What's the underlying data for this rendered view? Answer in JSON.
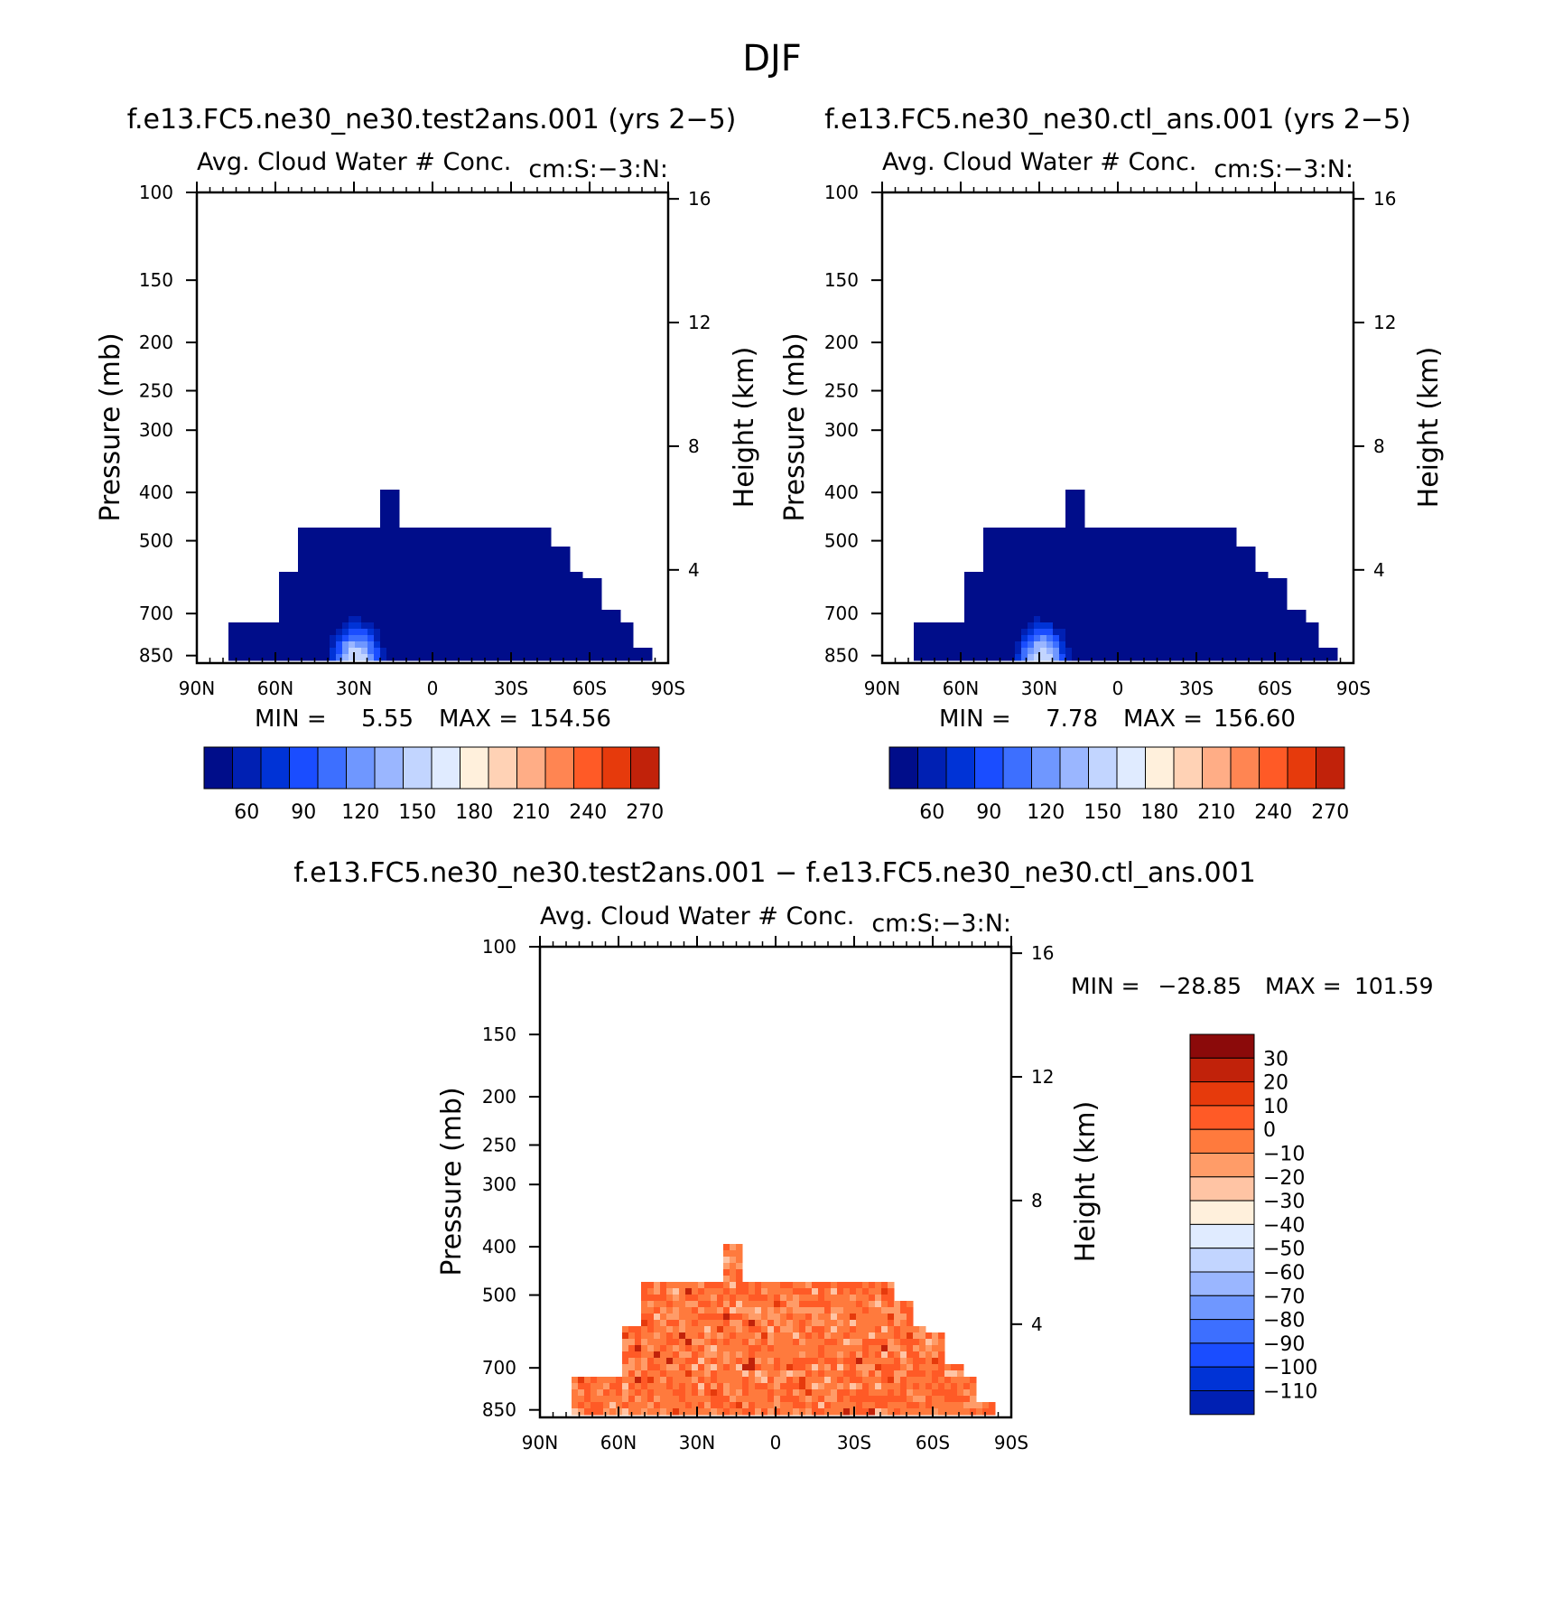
{
  "figure": {
    "title": "DJF",
    "diff_title": "f.e13.FC5.ne30_ne30.test2ans.001  −  f.e13.FC5.ne30_ne30.ctl_ans.001"
  },
  "colors": {
    "abs_scale": [
      "#000d8a",
      "#0020b3",
      "#0033d6",
      "#1a4dff",
      "#3d6fff",
      "#6f97ff",
      "#9ab6ff",
      "#c2d5ff",
      "#e0ebff",
      "#fff0dc",
      "#ffd2b5",
      "#ffad86",
      "#ff8552",
      "#ff5a26",
      "#e63a0c",
      "#c1220a",
      "#8b0a0a"
    ],
    "diff_scale": [
      "#8b0a0a",
      "#c1220a",
      "#e63a0c",
      "#ff5a26",
      "#ff7a3d",
      "#ff9c68",
      "#ffc4a4",
      "#fff0dc",
      "#e0ebff",
      "#c2d5ff",
      "#9ab6ff",
      "#6f97ff",
      "#3d6fff",
      "#1a4dff",
      "#0033d6",
      "#0020b3",
      "#000d8a"
    ]
  },
  "chart_data": [
    {
      "type": "heatmap",
      "panel": "test",
      "title": "f.e13.FC5.ne30_ne30.test2ans.001 (yrs 2−5)",
      "subtitle_left": "Avg. Cloud Water # Conc.",
      "subtitle_right": "cm:S:−3:N:",
      "ylabel": "Pressure (mb)",
      "ylabel_right": "Height (km)",
      "x_ticks": [
        "90N",
        "60N",
        "30N",
        "0",
        "30S",
        "60S",
        "90S"
      ],
      "y_ticks": [
        "100",
        "150",
        "200",
        "250",
        "300",
        "400",
        "500",
        "700",
        "850"
      ],
      "y_ticks_right": [
        "16",
        "12",
        "8",
        "4"
      ],
      "colorbar_labels": [
        "60",
        "90",
        "120",
        "150",
        "180",
        "210",
        "240",
        "270"
      ],
      "stats": {
        "min_label": "MIN =",
        "min": "5.55",
        "max_label": "MAX =",
        "max": "154.56"
      },
      "top_pressure": [
        860,
        860,
        720,
        720,
        720,
        570,
        470,
        470,
        470,
        470,
        470,
        400,
        470,
        470,
        470,
        470,
        470,
        470,
        470,
        470,
        470,
        520,
        570,
        600,
        680,
        720,
        810,
        860
      ],
      "max_level": 9,
      "peak_lat": 29,
      "contour_levels": [
        45,
        60,
        75,
        90,
        105,
        120,
        135,
        150
      ]
    },
    {
      "type": "heatmap",
      "panel": "ctl",
      "title": "f.e13.FC5.ne30_ne30.ctl_ans.001 (yrs 2−5)",
      "subtitle_left": "Avg. Cloud Water # Conc.",
      "subtitle_right": "cm:S:−3:N:",
      "ylabel": "Pressure (mb)",
      "ylabel_right": "Height (km)",
      "x_ticks": [
        "90N",
        "60N",
        "30N",
        "0",
        "30S",
        "60S",
        "90S"
      ],
      "y_ticks": [
        "100",
        "150",
        "200",
        "250",
        "300",
        "400",
        "500",
        "700",
        "850"
      ],
      "y_ticks_right": [
        "16",
        "12",
        "8",
        "4"
      ],
      "colorbar_labels": [
        "60",
        "90",
        "120",
        "150",
        "180",
        "210",
        "240",
        "270"
      ],
      "stats": {
        "min_label": "MIN =",
        "min": "7.78",
        "max_label": "MAX =",
        "max": "156.60"
      },
      "top_pressure": [
        860,
        860,
        720,
        720,
        720,
        570,
        470,
        470,
        470,
        470,
        470,
        400,
        470,
        470,
        470,
        470,
        470,
        470,
        470,
        470,
        470,
        520,
        570,
        600,
        680,
        720,
        810,
        860
      ],
      "max_level": 9,
      "peak_lat": 29,
      "contour_levels": [
        45,
        60,
        75,
        90,
        105,
        120,
        135,
        150
      ]
    },
    {
      "type": "heatmap",
      "panel": "diff",
      "subtitle_left": "Avg. Cloud Water # Conc.",
      "subtitle_right": "cm:S:−3:N:",
      "ylabel": "Pressure (mb)",
      "ylabel_right": "Height (km)",
      "x_ticks": [
        "90N",
        "60N",
        "30N",
        "0",
        "30S",
        "60S",
        "90S"
      ],
      "y_ticks": [
        "100",
        "150",
        "200",
        "250",
        "300",
        "400",
        "500",
        "700",
        "850"
      ],
      "y_ticks_right": [
        "16",
        "12",
        "8",
        "4"
      ],
      "colorbar_labels": [
        "30",
        "20",
        "10",
        "0",
        "−10",
        "−20",
        "−30",
        "−40",
        "−50",
        "−60",
        "−70",
        "−80",
        "−90",
        "−100",
        "−110"
      ],
      "stats": {
        "min_label": "MIN =",
        "min": "−28.85",
        "max_label": "MAX =",
        "max": "101.59"
      },
      "top_pressure": [
        860,
        860,
        720,
        720,
        720,
        570,
        470,
        470,
        470,
        470,
        470,
        400,
        470,
        470,
        470,
        470,
        470,
        470,
        470,
        470,
        470,
        520,
        570,
        600,
        680,
        720,
        810,
        860
      ],
      "typical_range": [
        5,
        20
      ]
    }
  ]
}
